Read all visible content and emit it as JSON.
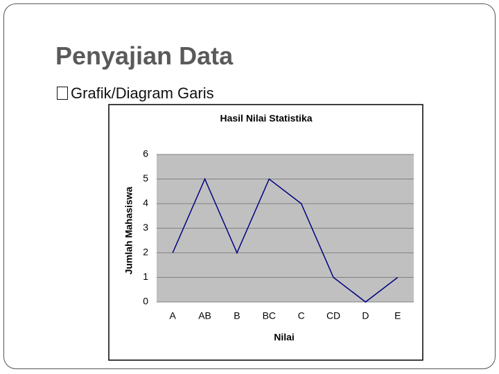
{
  "title": "Penyajian Data",
  "bullet": "Grafik/Diagram Garis",
  "chart_data": {
    "type": "line",
    "title": "Hasil Nilai Statistika",
    "x_label": "Nilai",
    "y_label": "Jumlah Mahasiswa",
    "categories": [
      "A",
      "AB",
      "B",
      "BC",
      "C",
      "CD",
      "D",
      "E"
    ],
    "values": [
      2,
      5,
      2,
      5,
      4,
      1,
      0,
      1
    ],
    "color": "#000080",
    "ylim": [
      0,
      6
    ],
    "yticks": [
      0,
      1,
      2,
      3,
      4,
      5,
      6
    ],
    "grid": true
  }
}
